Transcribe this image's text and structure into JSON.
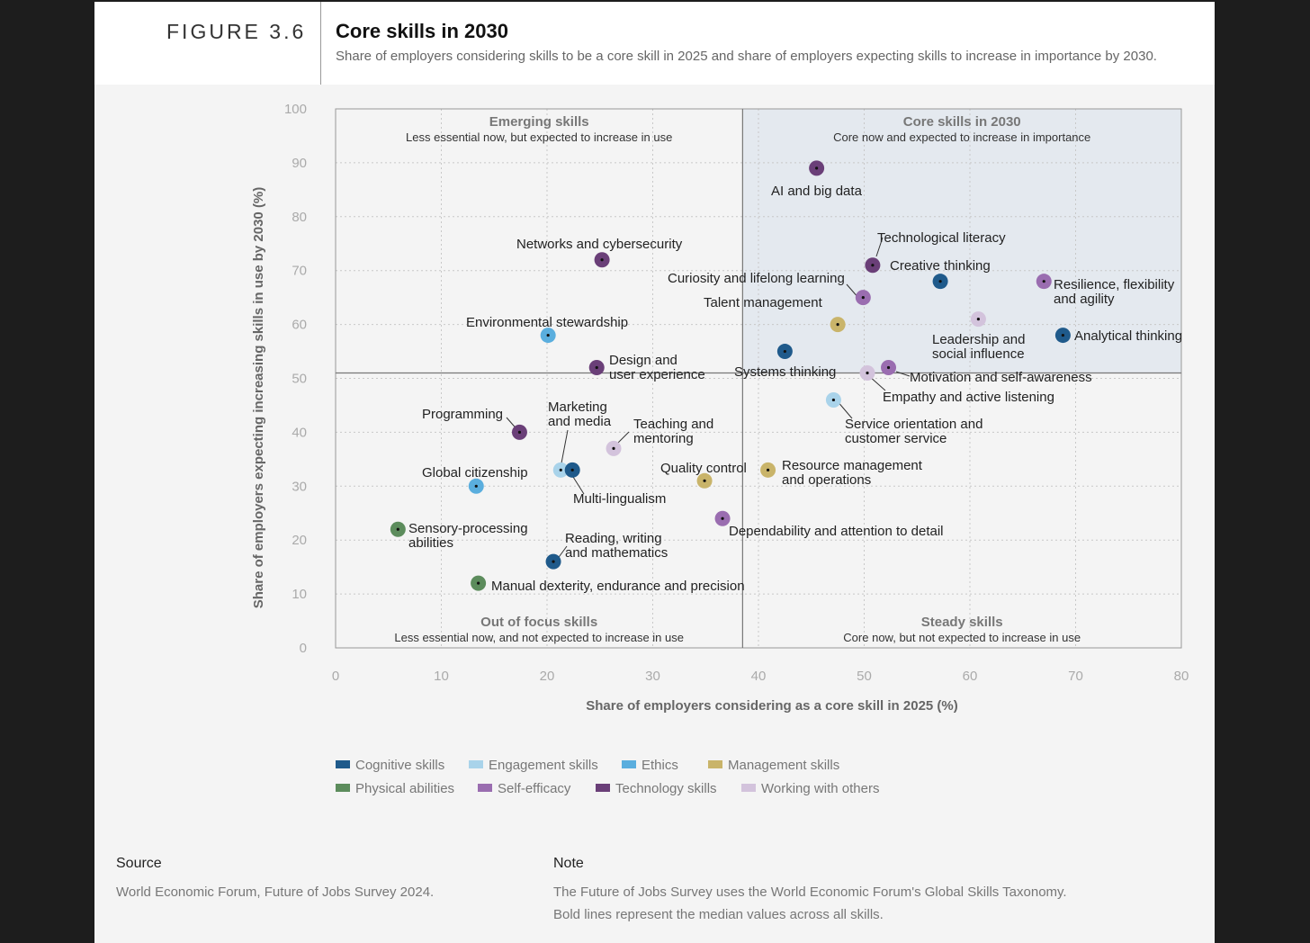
{
  "header": {
    "figure_number": "FIGURE 3.6",
    "title": "Core skills in 2030",
    "subtitle": "Share of employers considering skills to be a core skill in 2025 and share of employers expecting skills to increase in importance by 2030."
  },
  "colors": {
    "Cognitive skills": "#1f5a8b",
    "Engagement skills": "#a9d3ea",
    "Ethics": "#5aaede",
    "Management skills": "#c9b46a",
    "Physical abilities": "#5c8c5c",
    "Self-efficacy": "#9a6db0",
    "Technology skills": "#6a3f78",
    "Working with others": "#d3c3dc"
  },
  "chart_data": {
    "type": "scatter",
    "title": "Core skills in 2030",
    "xlabel": "Share of employers considering as a core skill in 2025 (%)",
    "ylabel": "Share of employers expecting increasing skills in use by 2030 (%)",
    "xlim": [
      0,
      80
    ],
    "ylim": [
      0,
      100
    ],
    "x_ticks": [
      0,
      10,
      20,
      30,
      40,
      50,
      60,
      70,
      80
    ],
    "y_ticks": [
      0,
      10,
      20,
      30,
      40,
      50,
      60,
      70,
      80,
      90,
      100
    ],
    "grid": true,
    "median_x": 38.5,
    "median_y": 51,
    "quadrants": [
      {
        "id": "emerging",
        "title": "Emerging skills",
        "subtitle": "Less essential now, but expected to increase in use"
      },
      {
        "id": "core",
        "title": "Core skills in 2030",
        "subtitle": "Core now and expected to increase in importance"
      },
      {
        "id": "outoffocus",
        "title": "Out of focus skills",
        "subtitle": "Less essential now, and not expected to increase in use"
      },
      {
        "id": "steady",
        "title": "Steady skills",
        "subtitle": "Core now, but not expected to increase in use"
      }
    ],
    "points": [
      {
        "label": "AI and big data",
        "x": 45.5,
        "y": 89,
        "category": "Technology skills"
      },
      {
        "label": "Technological literacy",
        "x": 50.8,
        "y": 71,
        "category": "Technology skills"
      },
      {
        "label": "Creative thinking",
        "x": 57.2,
        "y": 68,
        "category": "Cognitive skills"
      },
      {
        "label": "Resilience, flexibility and agility",
        "x": 67,
        "y": 68,
        "category": "Self-efficacy"
      },
      {
        "label": "Curiosity and lifelong learning",
        "x": 49.9,
        "y": 65,
        "category": "Self-efficacy"
      },
      {
        "label": "Talent management",
        "x": 47.5,
        "y": 60,
        "category": "Management skills"
      },
      {
        "label": "Leadership and social influence",
        "x": 60.8,
        "y": 61,
        "category": "Working with others"
      },
      {
        "label": "Analytical thinking",
        "x": 68.8,
        "y": 58,
        "category": "Cognitive skills"
      },
      {
        "label": "Systems thinking",
        "x": 42.5,
        "y": 55,
        "category": "Cognitive skills"
      },
      {
        "label": "Motivation and self-awareness",
        "x": 52.3,
        "y": 52,
        "category": "Self-efficacy"
      },
      {
        "label": "Empathy and active listening",
        "x": 50.3,
        "y": 51,
        "category": "Working with others"
      },
      {
        "label": "Service orientation and customer service",
        "x": 47.1,
        "y": 46,
        "category": "Engagement skills"
      },
      {
        "label": "Networks and cybersecurity",
        "x": 25.2,
        "y": 72,
        "category": "Technology skills"
      },
      {
        "label": "Environmental stewardship",
        "x": 20.1,
        "y": 58,
        "category": "Ethics"
      },
      {
        "label": "Design and user experience",
        "x": 24.7,
        "y": 52,
        "category": "Technology skills"
      },
      {
        "label": "Programming",
        "x": 17.4,
        "y": 40,
        "category": "Technology skills"
      },
      {
        "label": "Marketing and media",
        "x": 21.3,
        "y": 33,
        "category": "Engagement skills"
      },
      {
        "label": "Multi-lingualism",
        "x": 22.4,
        "y": 33,
        "category": "Cognitive skills"
      },
      {
        "label": "Teaching and mentoring",
        "x": 26.3,
        "y": 37,
        "category": "Working with others"
      },
      {
        "label": "Global citizenship",
        "x": 13.3,
        "y": 30,
        "category": "Ethics"
      },
      {
        "label": "Quality control",
        "x": 34.9,
        "y": 31,
        "category": "Management skills"
      },
      {
        "label": "Resource management and operations",
        "x": 40.9,
        "y": 33,
        "category": "Management skills"
      },
      {
        "label": "Dependability and attention to detail",
        "x": 36.6,
        "y": 24,
        "category": "Self-efficacy"
      },
      {
        "label": "Sensory-processing abilities",
        "x": 5.9,
        "y": 22,
        "category": "Physical abilities"
      },
      {
        "label": "Reading, writing and mathematics",
        "x": 20.6,
        "y": 16,
        "category": "Cognitive skills"
      },
      {
        "label": "Manual dexterity, endurance and precision",
        "x": 13.5,
        "y": 12,
        "category": "Physical abilities"
      }
    ],
    "legend": [
      "Cognitive skills",
      "Engagement skills",
      "Ethics",
      "Management skills",
      "Physical abilities",
      "Self-efficacy",
      "Technology skills",
      "Working with others"
    ]
  },
  "footer": {
    "source_label": "Source",
    "source_text": "World Economic Forum, Future of Jobs Survey 2024.",
    "note_label": "Note",
    "note_line1": "The Future of Jobs Survey uses the World Economic Forum's Global Skills Taxonomy.",
    "note_line2": "Bold lines represent the median values across all skills."
  }
}
